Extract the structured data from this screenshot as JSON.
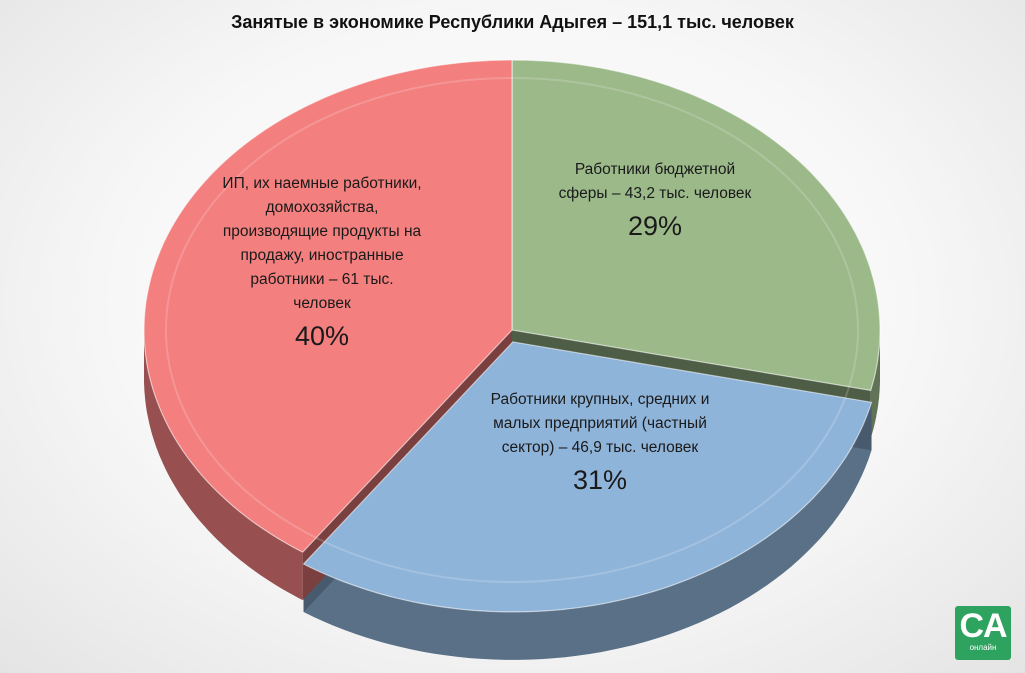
{
  "chart_data": {
    "type": "pie",
    "title": "Занятые в экономике Республики Адыгея – 151,1 тыс. человек",
    "slices": [
      {
        "key": "budget",
        "label": "Работники бюджетной сферы – 43,2 тыс. человек",
        "value": 43.2,
        "percent_label": "29%",
        "color": "#9cb98a"
      },
      {
        "key": "private",
        "label": "Работники крупных, средних и малых предприятий (частный сектор) – 46,9 тыс. человек",
        "value": 46.9,
        "percent_label": "31%",
        "color": "#8fb4d9"
      },
      {
        "key": "ip",
        "label": "ИП, их наемные работники, домохозяйства, производящие продукты на продажу, иностранные работники – 61 тыс. человек",
        "value": 61,
        "percent_label": "40%",
        "color": "#f37f7f"
      }
    ]
  },
  "logo": {
    "text": "CA",
    "subtext": "онлайн",
    "color": "#2ea35f"
  }
}
